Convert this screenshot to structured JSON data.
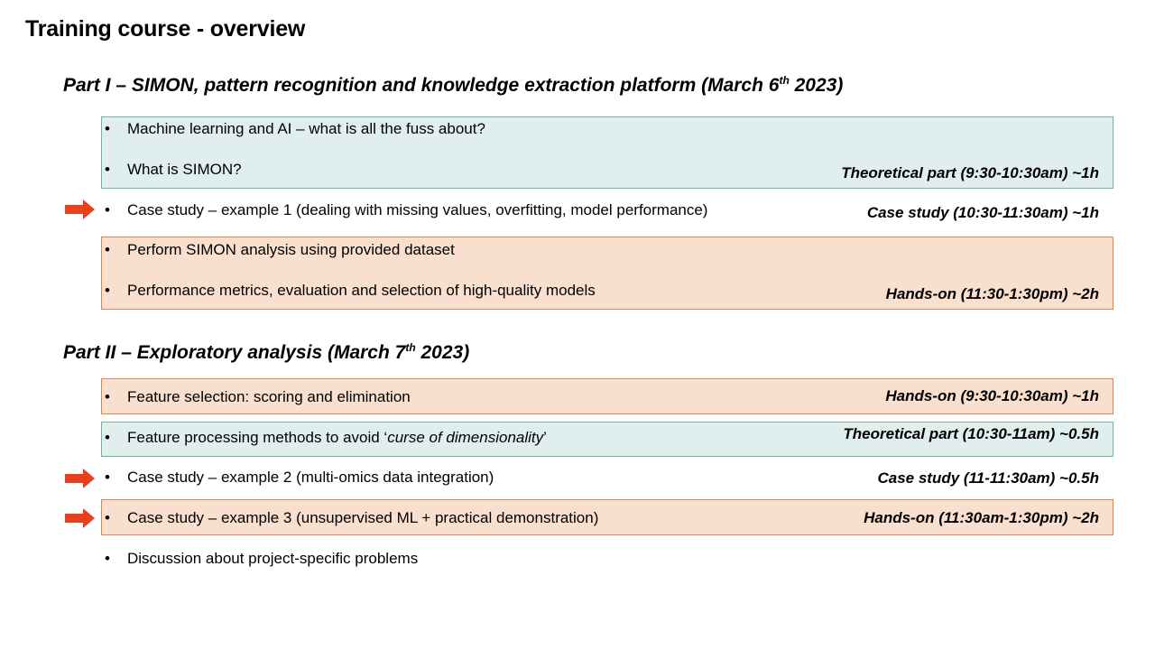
{
  "title": "Training course - overview",
  "part1": {
    "heading_main": "Part I – SIMON, pattern recognition and knowledge extraction platform (March 6",
    "heading_sup": "th",
    "heading_end": " 2023)",
    "items": [
      "Machine learning and AI – what is all the fuss about?",
      "What is SIMON?",
      "Case study – example 1 (dealing with missing values, overfitting, model performance)",
      "Perform SIMON analysis using provided dataset",
      "Performance metrics, evaluation and selection of high-quality models"
    ],
    "notes": {
      "theoretical": "Theoretical part (9:30-10:30am) ~1h",
      "case_study": "Case study (10:30-11:30am) ~1h",
      "hands_on": "Hands-on (11:30-1:30pm) ~2h"
    }
  },
  "part2": {
    "heading_main": "Part II – Exploratory analysis (March 7",
    "heading_sup": "th",
    "heading_end": " 2023)",
    "items": {
      "feature_selection": "Feature selection: scoring and elimination",
      "feature_processing_pre": "Feature processing methods to avoid ‘",
      "feature_processing_em": "curse of dimensionality",
      "feature_processing_post": "’",
      "case2": "Case study – example 2 (multi-omics data integration)",
      "case3": "Case study – example 3 (unsupervised ML + practical demonstration)",
      "discussion": "Discussion about project-specific problems"
    },
    "notes": {
      "hands_on_1": "Hands-on (9:30-10:30am) ~1h",
      "theoretical": "Theoretical part (10:30-11am) ~0.5h",
      "case_study": "Case study (11-11:30am) ~0.5h",
      "hands_on_2": "Hands-on (11:30am-1:30pm) ~2h"
    }
  },
  "bullet_char": "•",
  "colors": {
    "blue_fill": "#e1eeee",
    "orange_fill": "#f9dfce",
    "arrow": "#e8401c"
  },
  "icons": {
    "arrow": "right-arrow-icon"
  }
}
